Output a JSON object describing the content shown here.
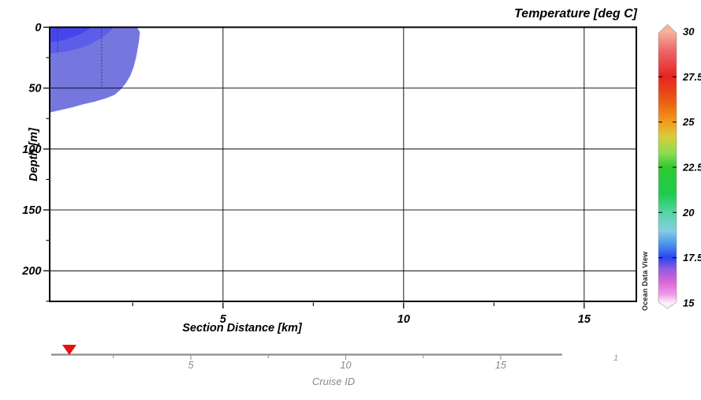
{
  "watermark": "Ocean Data View",
  "chart_data": {
    "type": "heatmap",
    "title": "Temperature [deg C]",
    "xlabel": "Section Distance [km]",
    "ylabel": "Depth [m]",
    "x_range_km": [
      0.2,
      16.5
    ],
    "depth_range_m": [
      0,
      225
    ],
    "grid": true,
    "x_major_ticks": [
      5,
      10,
      15
    ],
    "x_major_tick_labels": [
      "5",
      "10",
      "15"
    ],
    "x_minor_ticks": [
      2.5,
      7.5,
      12.5
    ],
    "y_major_ticks": [
      0,
      50,
      100,
      150,
      200
    ],
    "y_major_tick_labels": [
      "0",
      "50",
      "100",
      "150",
      "200"
    ],
    "y_minor_ticks": [
      25,
      75,
      125,
      175,
      225
    ],
    "stations": [
      {
        "x_km": 0.42,
        "max_depth_m": 21.5
      },
      {
        "x_km": 1.64,
        "max_depth_m": 50.5
      }
    ],
    "contours": [
      {
        "level_deg_c": "~17.8",
        "color": "#7577de",
        "points_km_m": [
          [
            0.2,
            0
          ],
          [
            2.62,
            0
          ],
          [
            2.7,
            4
          ],
          [
            2.67,
            12
          ],
          [
            2.6,
            24
          ],
          [
            2.52,
            33
          ],
          [
            2.43,
            40
          ],
          [
            2.31,
            46
          ],
          [
            2.17,
            51
          ],
          [
            2.0,
            55.5
          ],
          [
            1.75,
            58.5
          ],
          [
            1.45,
            61
          ],
          [
            1.1,
            63.5
          ],
          [
            0.8,
            66
          ],
          [
            0.5,
            68
          ],
          [
            0.2,
            70
          ]
        ]
      },
      {
        "level_deg_c": "~17.5",
        "color": "#5c5eea",
        "points_km_m": [
          [
            0.2,
            0
          ],
          [
            1.97,
            0
          ],
          [
            1.85,
            4
          ],
          [
            1.6,
            9.5
          ],
          [
            1.3,
            14.5
          ],
          [
            1.0,
            17.5
          ],
          [
            0.65,
            20
          ],
          [
            0.2,
            21.5
          ]
        ]
      },
      {
        "level_deg_c": "~17.2",
        "color": "#4446ec",
        "points_km_m": [
          [
            0.2,
            0
          ],
          [
            1.36,
            0
          ],
          [
            1.25,
            2.5
          ],
          [
            1.05,
            5.5
          ],
          [
            0.85,
            8
          ],
          [
            0.6,
            10.5
          ],
          [
            0.2,
            12.5
          ]
        ]
      }
    ],
    "colorbar": {
      "min": 15,
      "max": 30,
      "tick_values": [
        30,
        27.5,
        25,
        22.5,
        20,
        17.5,
        15
      ],
      "tick_labels": [
        "30",
        "27.5",
        "25",
        "22.5",
        "20",
        "17.5",
        "15"
      ],
      "gradient_stops": [
        {
          "value": 30,
          "color": "#f5b49b"
        },
        {
          "value": 29,
          "color": "#ec6a6e"
        },
        {
          "value": 27.5,
          "color": "#e52320"
        },
        {
          "value": 26,
          "color": "#ec6410"
        },
        {
          "value": 25,
          "color": "#f49c1b"
        },
        {
          "value": 24.2,
          "color": "#d8cc3a"
        },
        {
          "value": 23.3,
          "color": "#8edc50"
        },
        {
          "value": 22.5,
          "color": "#30c930"
        },
        {
          "value": 21,
          "color": "#1ecb4e"
        },
        {
          "value": 20,
          "color": "#55d5a6"
        },
        {
          "value": 19,
          "color": "#82cfe2"
        },
        {
          "value": 18.2,
          "color": "#478fee"
        },
        {
          "value": 17.5,
          "color": "#2b44ee"
        },
        {
          "value": 16.9,
          "color": "#8e5ae2"
        },
        {
          "value": 16.2,
          "color": "#d863d8"
        },
        {
          "value": 15.5,
          "color": "#f096e6"
        },
        {
          "value": 15,
          "color": "#fdf0fb"
        }
      ]
    },
    "bottom_axis": {
      "label": "Cruise ID",
      "major_ticks": [
        5,
        10,
        15
      ],
      "major_tick_labels": [
        "5",
        "10",
        "15"
      ],
      "minor_ticks": [
        2.5,
        7.5,
        12.5
      ],
      "marker_x_km": 1.08,
      "marker_color": "#e81010",
      "axis_color": "#8c8c8c",
      "right_label": "1"
    }
  }
}
